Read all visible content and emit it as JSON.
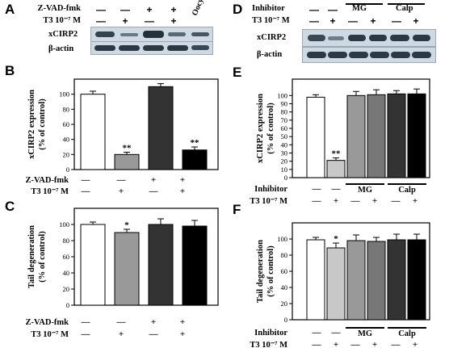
{
  "panels": {
    "A": {
      "letter": "A",
      "row_labels": [
        "Z-VAD-fmk",
        "T3 10⁻⁷ M"
      ],
      "treatment1": [
        "—",
        "—",
        "+",
        "+"
      ],
      "treatment2": [
        "—",
        "+",
        "—",
        "+"
      ],
      "extra_lane": "Oocyte",
      "blot_labels": [
        "xCIRP2",
        "β-actin"
      ]
    },
    "D": {
      "letter": "D",
      "row_labels": [
        "Inhibitor",
        "T3 10⁻⁷ M"
      ],
      "groups": [
        "MG",
        "Calp"
      ],
      "treatment1": [
        "—",
        "—"
      ],
      "treatment2": [
        "—",
        "+",
        "—",
        "+",
        "—",
        "+"
      ],
      "blot_labels": [
        "xCIRP2",
        "β-actin"
      ]
    },
    "B": {
      "letter": "B"
    },
    "C": {
      "letter": "C"
    },
    "E": {
      "letter": "E"
    },
    "F": {
      "letter": "F"
    }
  },
  "chart_data": [
    {
      "id": "B",
      "type": "bar",
      "ylabel": "xCIRP2 expression\n(% of control)",
      "ylim": [
        0,
        120
      ],
      "yticks": [
        0,
        20,
        40,
        60,
        80,
        100
      ],
      "categories": [
        "—/—",
        "—/+",
        "+/—",
        "+/+"
      ],
      "values": [
        100,
        20,
        110,
        26
      ],
      "errors": [
        4,
        3,
        4,
        4
      ],
      "colors": [
        "#ffffff",
        "#999999",
        "#333333",
        "#000000"
      ],
      "annotations": [
        "",
        "**",
        "",
        "**"
      ],
      "row_labels": [
        "Z-VAD-fmk",
        "T3 10⁻⁷ M"
      ],
      "treatment1": [
        "—",
        "—",
        "+",
        "+"
      ],
      "treatment2": [
        "—",
        "+",
        "—",
        "+"
      ]
    },
    {
      "id": "C",
      "type": "bar",
      "ylabel": "Tail degeneration\n(% of control)",
      "ylim": [
        0,
        120
      ],
      "yticks": [
        0,
        20,
        40,
        60,
        80,
        100
      ],
      "categories": [
        "—/—",
        "—/+",
        "+/—",
        "+/+"
      ],
      "values": [
        100,
        90,
        100,
        98
      ],
      "errors": [
        3,
        4,
        7,
        7
      ],
      "colors": [
        "#ffffff",
        "#999999",
        "#333333",
        "#000000"
      ],
      "annotations": [
        "",
        "*",
        "",
        ""
      ],
      "row_labels": [
        "Z-VAD-fmk",
        "T3 10⁻⁷ M"
      ],
      "treatment1": [
        "—",
        "—",
        "+",
        "+"
      ],
      "treatment2": [
        "—",
        "+",
        "—",
        "+"
      ]
    },
    {
      "id": "E",
      "type": "bar",
      "ylabel": "xCIRP2 expression\n(% of control)",
      "ylim": [
        0,
        120
      ],
      "yticks": [
        0,
        10,
        20,
        30,
        40,
        50,
        60,
        70,
        80,
        90,
        100
      ],
      "categories": [
        "—/—",
        "—/+",
        "MG/—",
        "MG/+",
        "Calp/—",
        "Calp/+"
      ],
      "values": [
        98,
        21,
        100,
        101,
        102,
        102
      ],
      "errors": [
        3,
        3,
        5,
        6,
        4,
        6
      ],
      "colors": [
        "#ffffff",
        "#c8c8c8",
        "#999999",
        "#777777",
        "#333333",
        "#000000"
      ],
      "annotations": [
        "",
        "**",
        "",
        "",
        "",
        ""
      ],
      "row_labels": [
        "Inhibitor",
        "T3 10⁻⁷ M"
      ],
      "groups": [
        "MG",
        "Calp"
      ],
      "treatment1": [
        "—",
        "—"
      ],
      "treatment2": [
        "—",
        "+",
        "—",
        "+",
        "—",
        "+"
      ]
    },
    {
      "id": "F",
      "type": "bar",
      "ylabel": "Tail degeneration\n(% of control)",
      "ylim": [
        0,
        120
      ],
      "yticks": [
        0,
        20,
        40,
        60,
        80,
        100
      ],
      "categories": [
        "—/—",
        "—/+",
        "MG/—",
        "MG/+",
        "Calp/—",
        "Calp/+"
      ],
      "values": [
        99,
        89,
        98,
        97,
        99,
        99
      ],
      "errors": [
        3,
        6,
        7,
        5,
        7,
        7
      ],
      "colors": [
        "#ffffff",
        "#c8c8c8",
        "#999999",
        "#777777",
        "#333333",
        "#000000"
      ],
      "annotations": [
        "",
        "*",
        "",
        "",
        "",
        ""
      ],
      "row_labels": [
        "Inhibitor",
        "T3 10⁻⁷ M"
      ],
      "groups": [
        "MG",
        "Calp"
      ],
      "treatment1": [
        "—",
        "—"
      ],
      "treatment2": [
        "—",
        "+",
        "—",
        "+",
        "—",
        "+"
      ]
    }
  ]
}
